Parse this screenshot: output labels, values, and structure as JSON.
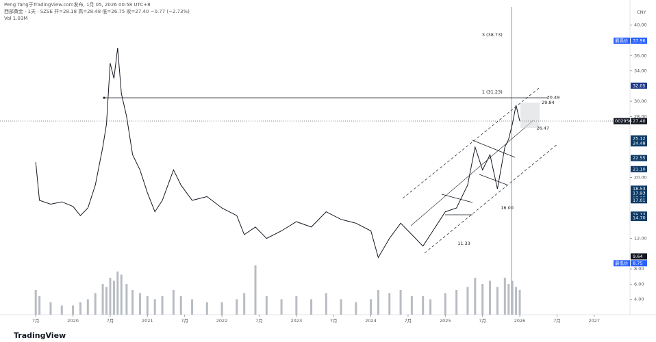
{
  "header": {
    "publisher": "Peng Tang于TradingView.com发布, 1月 05, 2026 00:58 UTC+8",
    "symbol": "西部黄金 · 1天 · SZSE  开=28.18 高=28.48 低=26.75 收=27.40 −0.77 (−2.73%)",
    "volume": "Vol 1.03M",
    "currency": "CNY",
    "brand": "TradingView"
  },
  "chart_data": {
    "type": "line",
    "x": [
      2019.5,
      2019.55,
      2019.7,
      2019.85,
      2020.0,
      2020.1,
      2020.2,
      2020.3,
      2020.4,
      2020.45,
      2020.5,
      2020.55,
      2020.6,
      2020.65,
      2020.72,
      2020.8,
      2020.9,
      2021.0,
      2021.1,
      2021.2,
      2021.35,
      2021.45,
      2021.6,
      2021.8,
      2022.0,
      2022.2,
      2022.3,
      2022.45,
      2022.6,
      2022.8,
      2023.0,
      2023.2,
      2023.4,
      2023.6,
      2023.8,
      2024.0,
      2024.1,
      2024.25,
      2024.4,
      2024.55,
      2024.7,
      2024.8,
      2025.0,
      2025.15,
      2025.3,
      2025.4,
      2025.5,
      2025.6,
      2025.7,
      2025.8,
      2025.85,
      2025.9,
      2025.95,
      2026.0
    ],
    "series": [
      {
        "color": "#131722",
        "values": [
          22,
          17,
          16.5,
          16.8,
          16.2,
          15,
          16,
          19,
          24,
          27,
          35,
          33,
          37,
          31,
          28,
          23,
          21,
          18,
          15.5,
          17,
          21,
          19,
          17,
          17.5,
          16,
          15,
          12.5,
          13.5,
          12,
          13,
          14.2,
          13.5,
          15.5,
          14.5,
          14,
          13,
          9.5,
          12,
          14,
          12.5,
          11,
          12.5,
          15.5,
          16,
          19,
          24,
          21,
          23,
          18.5,
          24,
          25,
          27,
          29.5,
          27.4
        ]
      }
    ],
    "volume": {
      "color": "#9aa0a8",
      "vlim": [
        0,
        100
      ],
      "values": [
        40,
        30,
        20,
        15,
        15,
        20,
        25,
        35,
        50,
        45,
        60,
        55,
        70,
        65,
        50,
        40,
        35,
        30,
        25,
        30,
        40,
        30,
        25,
        20,
        20,
        25,
        35,
        80,
        30,
        25,
        30,
        25,
        35,
        25,
        20,
        25,
        40,
        35,
        40,
        30,
        30,
        25,
        35,
        40,
        45,
        60,
        50,
        55,
        45,
        60,
        50,
        55,
        45,
        40
      ]
    },
    "xlim": [
      2019.02,
      2027.48
    ],
    "xticks": [
      {
        "value": 2019.5,
        "label": "7月"
      },
      2020,
      {
        "value": 2020.5,
        "label": "7月"
      },
      2021,
      {
        "value": 2021.5,
        "label": "7月"
      },
      2022,
      {
        "value": 2022.5,
        "label": "7月"
      },
      2023,
      {
        "value": 2023.5,
        "label": "7月"
      },
      2024,
      {
        "value": 2024.5,
        "label": "7月"
      },
      2025,
      {
        "value": 2025.5,
        "label": "7月"
      },
      2026,
      {
        "value": 2026.5,
        "label": "7月"
      },
      2027
    ],
    "ylim": [
      2,
      42.4
    ],
    "yticks": [
      {
        "value": 40,
        "label": "40.00"
      },
      {
        "value": 36,
        "label": "36.00"
      },
      {
        "value": 34,
        "label": "34.00"
      },
      {
        "value": 30,
        "label": "30.00"
      },
      {
        "value": 28,
        "label": "28.00"
      },
      {
        "value": 20,
        "label": "20.00"
      },
      {
        "value": 12,
        "label": "12.00"
      },
      {
        "value": 8,
        "label": "8.00"
      },
      {
        "value": 6,
        "label": "6.00"
      },
      {
        "value": 4,
        "label": "4.00"
      }
    ],
    "price_tags": [
      {
        "value": 37.96,
        "label": "37.96",
        "color": "#2962ff",
        "name": "最高价"
      },
      {
        "value": 32.05,
        "label": "32.05",
        "color": "#1e3a8a"
      },
      {
        "value": 27.4,
        "label": "27.40",
        "color": "#131722",
        "name": "002956"
      },
      {
        "value": 25.12,
        "label": "25.12",
        "color": "#0d3b66"
      },
      {
        "value": 24.48,
        "label": "24.48",
        "color": "#0d3b66"
      },
      {
        "value": 22.55,
        "label": "22.55",
        "color": "#0d3b66"
      },
      {
        "value": 21.1,
        "label": "21.10",
        "color": "#0d3b66"
      },
      {
        "value": 18.53,
        "label": "18.53",
        "color": "#0d3b66"
      },
      {
        "value": 17.93,
        "label": "17.93",
        "color": "#0d3b66"
      },
      {
        "value": 17.25,
        "label": "17.25",
        "color": "#0d3b66"
      },
      {
        "value": 17.01,
        "label": "17.01",
        "color": "#0d3b66"
      },
      {
        "value": 15.13,
        "label": "15.13",
        "color": "#0d3b66"
      },
      {
        "value": 14.7,
        "label": "14.70",
        "color": "#0d3b66"
      },
      {
        "value": 9.64,
        "label": "9.64",
        "color": "#131722"
      },
      {
        "value": 8.75,
        "label": "8.75",
        "color": "#2962ff",
        "name": "最低价"
      }
    ],
    "annotations": [
      {
        "x": 2026.45,
        "value": 30.49,
        "label": "30.49"
      },
      {
        "x": 2026.38,
        "value": 29.84,
        "label": "29.84"
      },
      {
        "x": 2026.31,
        "value": 26.47,
        "label": "26.47"
      },
      {
        "x": 2025.83,
        "value": 16.0,
        "label": "16.00"
      },
      {
        "x": 2025.25,
        "value": 11.33,
        "label": "11.33"
      },
      {
        "x": 2025.63,
        "value": 31.23,
        "label": "1 (31.23)"
      },
      {
        "x": 2025.63,
        "value": 38.73,
        "label": "3 (38.73)"
      }
    ]
  }
}
